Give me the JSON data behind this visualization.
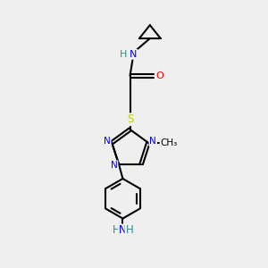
{
  "bg_color": "#efefef",
  "atom_colors": {
    "C": "#000000",
    "N": "#0000ee",
    "O": "#ff0000",
    "S": "#cccc00",
    "H": "#2e8b8b"
  },
  "bond_color": "#000000",
  "bond_width": 1.5
}
